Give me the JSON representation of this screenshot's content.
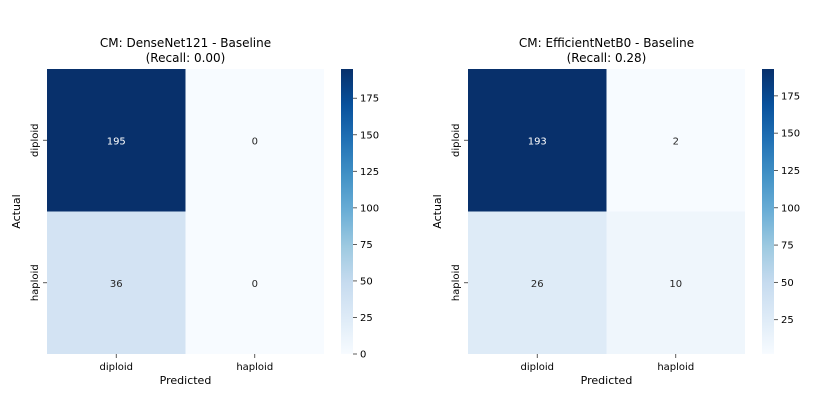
{
  "chart_data": [
    {
      "type": "heatmap",
      "title": "CM: DenseNet121 - Baseline",
      "subtitle": "(Recall: 0.00)",
      "xlabel": "Predicted",
      "ylabel": "Actual",
      "x_categories": [
        "diploid",
        "haploid"
      ],
      "y_categories": [
        "diploid",
        "haploid"
      ],
      "values": [
        [
          195,
          0
        ],
        [
          36,
          0
        ]
      ],
      "colormap": "Blues",
      "vmin": 0,
      "vmax": 195,
      "colorbar_ticks": [
        0,
        25,
        50,
        75,
        100,
        125,
        150,
        175
      ],
      "colorbar_tick_labels": [
        "0",
        "25",
        "50",
        "75",
        "100",
        "125",
        "150",
        "175"
      ]
    },
    {
      "type": "heatmap",
      "title": "CM: EfficientNetB0 - Baseline",
      "subtitle": "(Recall: 0.28)",
      "xlabel": "Predicted",
      "ylabel": "Actual",
      "x_categories": [
        "diploid",
        "haploid"
      ],
      "y_categories": [
        "diploid",
        "haploid"
      ],
      "values": [
        [
          193,
          2
        ],
        [
          26,
          10
        ]
      ],
      "colormap": "Blues",
      "vmin": 2,
      "vmax": 193,
      "colorbar_ticks": [
        25,
        50,
        75,
        100,
        125,
        150,
        175
      ],
      "colorbar_tick_labels": [
        "25",
        "50",
        "75",
        "100",
        "125",
        "150",
        "175"
      ]
    }
  ]
}
